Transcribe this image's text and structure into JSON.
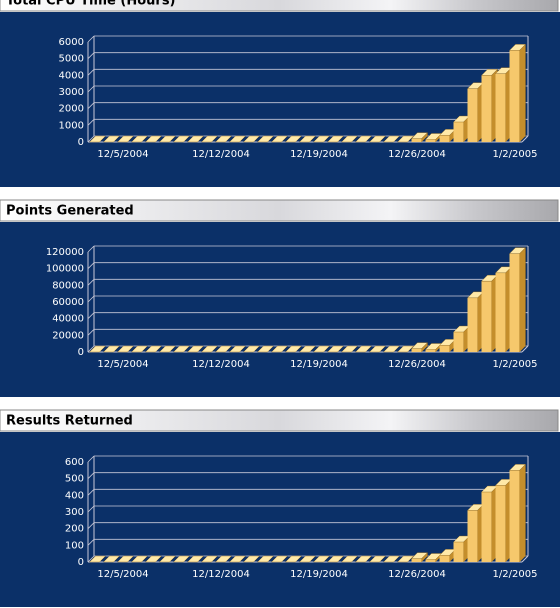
{
  "chart_data": [
    {
      "type": "bar",
      "title": "Total CPU Time (Hours)",
      "categories": [
        null,
        null,
        "12/5/2004",
        null,
        null,
        null,
        null,
        null,
        null,
        "12/12/2004",
        null,
        null,
        null,
        null,
        null,
        null,
        "12/19/2004",
        null,
        null,
        null,
        null,
        null,
        null,
        "12/26/2004",
        null,
        null,
        null,
        null,
        null,
        null,
        "1/2/2005"
      ],
      "values": [
        0,
        0,
        0,
        0,
        0,
        0,
        0,
        0,
        0,
        0,
        0,
        0,
        0,
        0,
        0,
        0,
        0,
        0,
        0,
        0,
        0,
        0,
        0,
        200,
        150,
        400,
        1200,
        3200,
        4000,
        4100,
        5500
      ],
      "color": "#f6c86c",
      "ylim": [
        0,
        6000
      ],
      "yticks": [
        0,
        1000,
        2000,
        3000,
        4000,
        5000,
        6000
      ],
      "grid": true
    },
    {
      "type": "bar",
      "title": "Points Generated",
      "categories": [
        null,
        null,
        "12/5/2004",
        null,
        null,
        null,
        null,
        null,
        null,
        "12/12/2004",
        null,
        null,
        null,
        null,
        null,
        null,
        "12/19/2004",
        null,
        null,
        null,
        null,
        null,
        null,
        "12/26/2004",
        null,
        null,
        null,
        null,
        null,
        null,
        "1/2/2005"
      ],
      "values": [
        0,
        0,
        0,
        0,
        0,
        0,
        0,
        0,
        0,
        0,
        0,
        0,
        0,
        0,
        0,
        0,
        0,
        0,
        0,
        0,
        0,
        0,
        0,
        4000,
        3000,
        8000,
        24000,
        65000,
        85000,
        95000,
        118000
      ],
      "color": "#f6c86c",
      "ylim": [
        0,
        120000
      ],
      "yticks": [
        0,
        20000,
        40000,
        60000,
        80000,
        100000,
        120000
      ],
      "grid": true
    },
    {
      "type": "bar",
      "title": "Results Returned",
      "categories": [
        null,
        null,
        "12/5/2004",
        null,
        null,
        null,
        null,
        null,
        null,
        "12/12/2004",
        null,
        null,
        null,
        null,
        null,
        null,
        "12/19/2004",
        null,
        null,
        null,
        null,
        null,
        null,
        "12/26/2004",
        null,
        null,
        null,
        null,
        null,
        null,
        "1/2/2005"
      ],
      "values": [
        0,
        0,
        0,
        0,
        0,
        0,
        0,
        0,
        0,
        0,
        0,
        0,
        0,
        0,
        0,
        0,
        0,
        0,
        0,
        0,
        0,
        0,
        0,
        20,
        15,
        40,
        120,
        310,
        420,
        460,
        550
      ],
      "color": "#f6c86c",
      "ylim": [
        0,
        600
      ],
      "yticks": [
        0,
        100,
        200,
        300,
        400,
        500,
        600
      ],
      "grid": true
    }
  ]
}
